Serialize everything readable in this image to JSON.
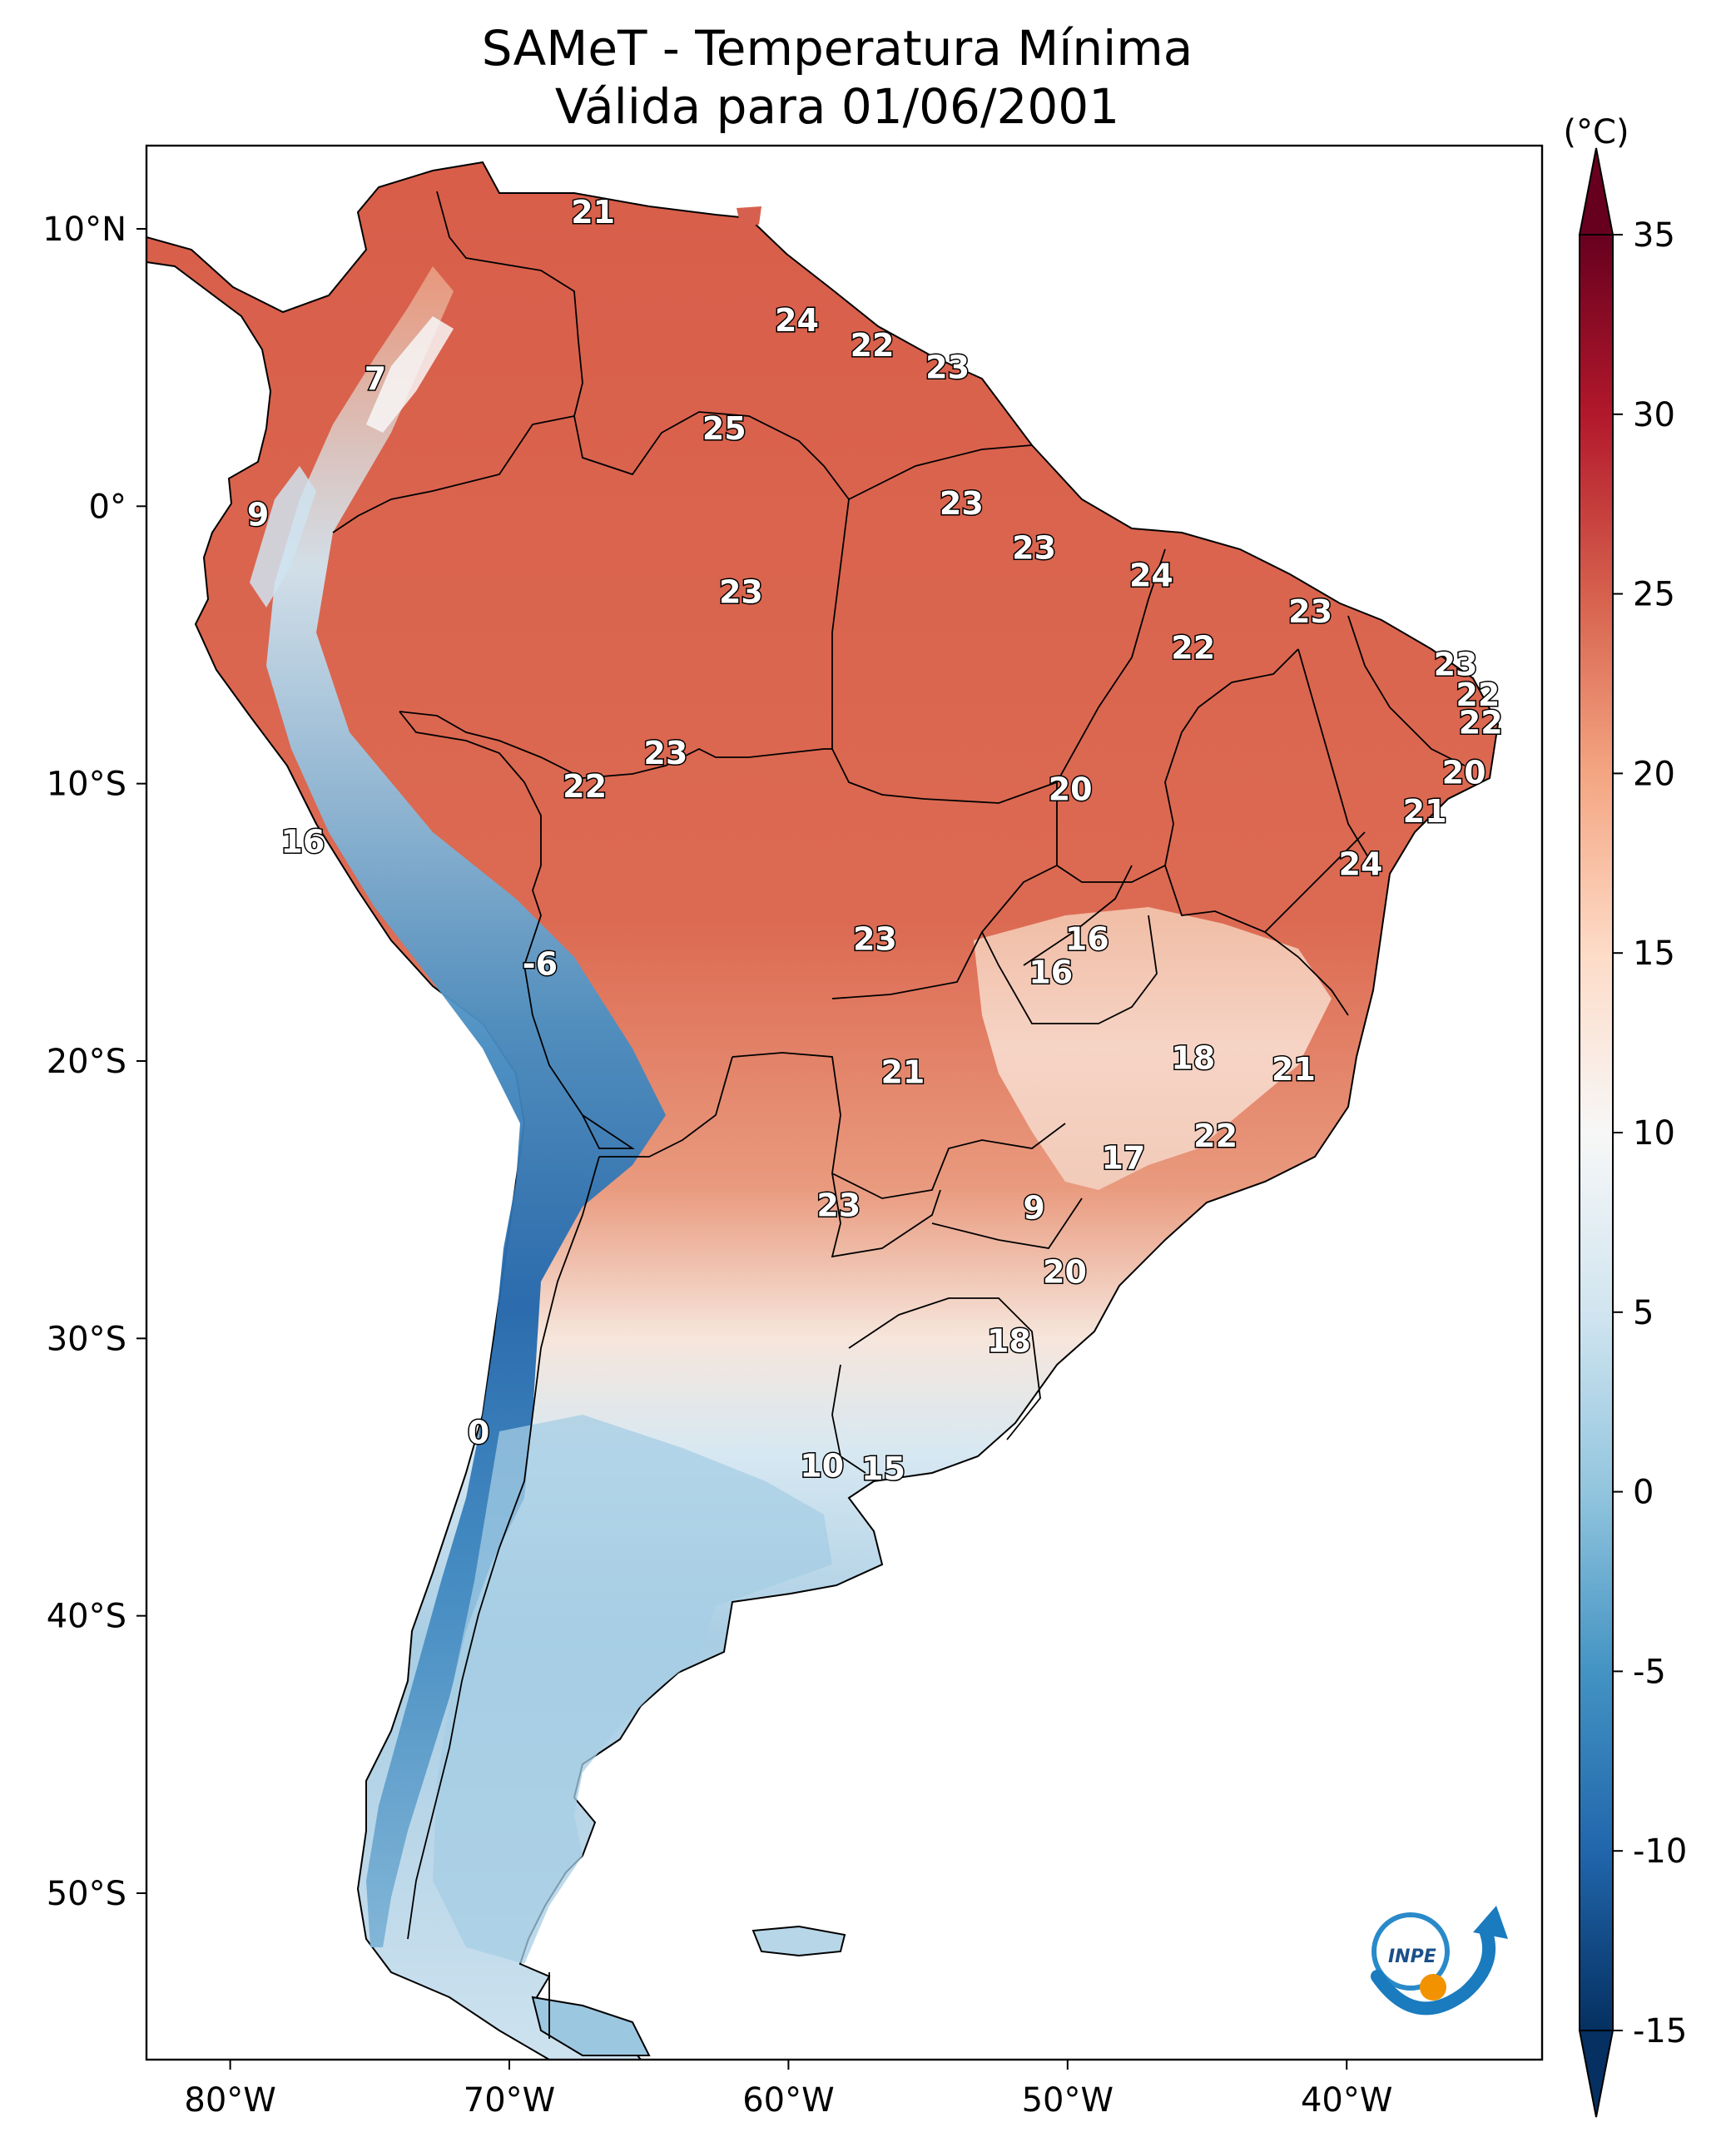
{
  "title": {
    "line1": "SAMeT - Temperatura Mínima",
    "line2": "Válida para 01/06/2001"
  },
  "colorbar": {
    "unit_label": "(°C)",
    "min": -15,
    "max": 35,
    "ticks": [
      "35",
      "30",
      "25",
      "20",
      "15",
      "10",
      "5",
      "0",
      "-5",
      "-10",
      "-15"
    ],
    "tick_values": [
      35,
      30,
      25,
      20,
      15,
      10,
      5,
      0,
      -5,
      -10,
      -15
    ],
    "colors": [
      "#053061",
      "#2166ac",
      "#4393c3",
      "#92c5de",
      "#d1e5f0",
      "#f7f7f7",
      "#fddbc7",
      "#f4a582",
      "#d6604d",
      "#b2182b",
      "#67001f"
    ]
  },
  "axes": {
    "longitude_ticks": [
      "80°W",
      "70°W",
      "60°W",
      "50°W",
      "40°W"
    ],
    "latitude_ticks": [
      "10°N",
      "0°",
      "10°S",
      "20°S",
      "30°S",
      "40°S",
      "50°S"
    ],
    "lon_range": [
      -83,
      -33
    ],
    "lat_range": [
      -56,
      13
    ]
  },
  "station_values": [
    {
      "label": "21",
      "lon": -67,
      "lat": 10.6
    },
    {
      "label": "24",
      "lon": -59.7,
      "lat": 6.7
    },
    {
      "label": "22",
      "lon": -57,
      "lat": 5.8
    },
    {
      "label": "23",
      "lon": -54.3,
      "lat": 5.0
    },
    {
      "label": "7",
      "lon": -74.8,
      "lat": 4.6
    },
    {
      "label": "25",
      "lon": -62.3,
      "lat": 2.8
    },
    {
      "label": "9",
      "lon": -79,
      "lat": -0.3
    },
    {
      "label": "23",
      "lon": -53.8,
      "lat": 0.1
    },
    {
      "label": "23",
      "lon": -51.2,
      "lat": -1.5
    },
    {
      "label": "24",
      "lon": -47,
      "lat": -2.5
    },
    {
      "label": "23",
      "lon": -61.7,
      "lat": -3.1
    },
    {
      "label": "23",
      "lon": -41.3,
      "lat": -3.8
    },
    {
      "label": "22",
      "lon": -45.5,
      "lat": -5.1
    },
    {
      "label": "23",
      "lon": -36.1,
      "lat": -5.7
    },
    {
      "label": "22",
      "lon": -35.3,
      "lat": -6.8
    },
    {
      "label": "22",
      "lon": -35.2,
      "lat": -7.8
    },
    {
      "label": "23",
      "lon": -64.4,
      "lat": -8.9
    },
    {
      "label": "20",
      "lon": -35.8,
      "lat": -9.6
    },
    {
      "label": "22",
      "lon": -67.3,
      "lat": -10.1
    },
    {
      "label": "20",
      "lon": -49.9,
      "lat": -10.2
    },
    {
      "label": "21",
      "lon": -37.2,
      "lat": -11
    },
    {
      "label": "16",
      "lon": -77.4,
      "lat": -12.1
    },
    {
      "label": "24",
      "lon": -39.5,
      "lat": -12.9
    },
    {
      "label": "16",
      "lon": -49.3,
      "lat": -15.6
    },
    {
      "label": "23",
      "lon": -56.9,
      "lat": -15.6
    },
    {
      "label": "16",
      "lon": -50.6,
      "lat": -16.8
    },
    {
      "label": "-6",
      "lon": -68.9,
      "lat": -16.5
    },
    {
      "label": "18",
      "lon": -45.5,
      "lat": -19.9
    },
    {
      "label": "21",
      "lon": -55.9,
      "lat": -20.4
    },
    {
      "label": "21",
      "lon": -41.9,
      "lat": -20.3
    },
    {
      "label": "22",
      "lon": -44.7,
      "lat": -22.7
    },
    {
      "label": "17",
      "lon": -48,
      "lat": -23.5
    },
    {
      "label": "9",
      "lon": -51.2,
      "lat": -25.3
    },
    {
      "label": "23",
      "lon": -58.2,
      "lat": -25.2
    },
    {
      "label": "20",
      "lon": -50.1,
      "lat": -27.6
    },
    {
      "label": "18",
      "lon": -52.1,
      "lat": -30.1
    },
    {
      "label": "0",
      "lon": -71.1,
      "lat": -33.4
    },
    {
      "label": "10",
      "lon": -58.8,
      "lat": -34.6
    },
    {
      "label": "15",
      "lon": -56.6,
      "lat": -34.7
    }
  ]
}
